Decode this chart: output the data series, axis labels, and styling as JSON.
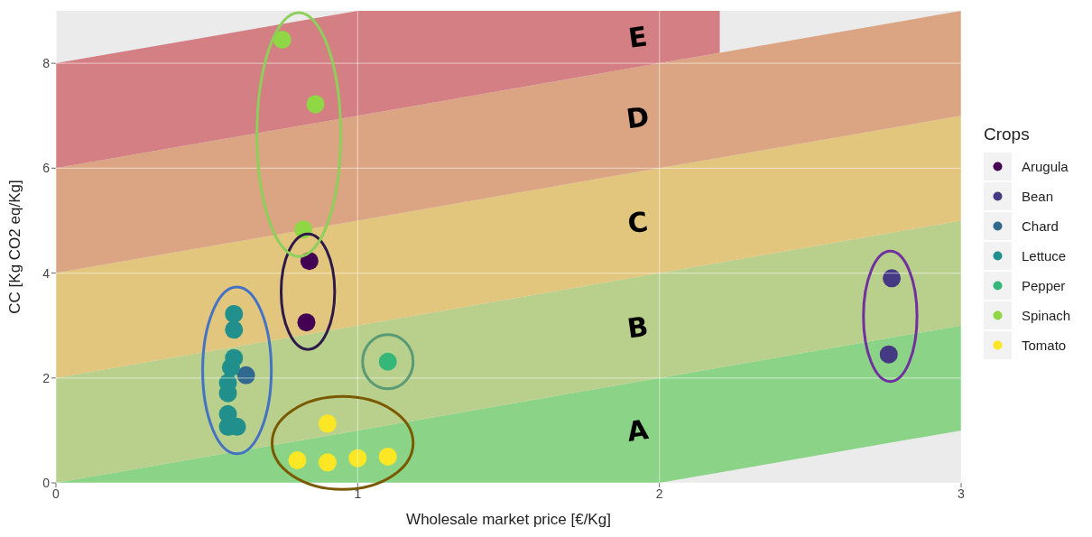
{
  "chart_data": {
    "type": "scatter",
    "xlabel": "Wholesale market price [€/Kg]",
    "ylabel": "CC [Kg CO2 eq/Kg]",
    "legend_title": "Crops",
    "xlim": [
      0,
      3
    ],
    "xticks": [
      0,
      1,
      2,
      3
    ],
    "ylim": [
      0,
      9
    ],
    "yticks": [
      0,
      2,
      4,
      6,
      8
    ],
    "grid": true,
    "legend": "right",
    "marker": "circle",
    "stacked": true,
    "x": [
      0,
      1,
      2,
      2.2,
      2.2,
      3
    ],
    "series": [
      {
        "type": "area",
        "marker": "none",
        "color": "#ebebeb",
        "values": [
          0,
          0,
          0,
          0.2,
          0.2,
          1
        ]
      },
      {
        "type": "area",
        "name": "A",
        "marker": "none",
        "color": "#8ad387",
        "values": [
          0,
          1,
          2,
          2,
          2,
          2
        ]
      },
      {
        "type": "area",
        "name": "B",
        "marker": "none",
        "color": "#b9cf8c",
        "values": [
          2,
          2,
          2,
          2,
          2,
          2
        ]
      },
      {
        "type": "area",
        "name": "C",
        "marker": "none",
        "color": "#e2c67d",
        "values": [
          2,
          2,
          2,
          2,
          2,
          2
        ]
      },
      {
        "type": "area",
        "name": "D",
        "marker": "none",
        "color": "#dba583",
        "values": [
          2,
          2,
          2,
          2,
          2,
          2
        ]
      },
      {
        "type": "area",
        "name": "E",
        "marker": "none",
        "color": "#d47f83",
        "values": [
          2,
          2,
          1,
          0.8,
          0,
          0
        ]
      },
      {
        "name": "Arugula",
        "color": "#440154",
        "x": [
          0.84,
          0.83
        ],
        "values": [
          4.23,
          3.06
        ]
      },
      {
        "name": "Bean",
        "color": "#443983",
        "x": [
          2.77,
          2.76
        ],
        "values": [
          3.9,
          2.45
        ]
      },
      {
        "name": "Chard",
        "color": "#31688e",
        "x": [
          0.63
        ],
        "values": [
          2.05
        ]
      },
      {
        "name": "Lettuce",
        "color": "#21908c",
        "x": [
          0.59,
          0.59,
          0.59,
          0.58,
          0.57,
          0.57,
          0.57,
          0.57,
          0.6
        ],
        "values": [
          3.22,
          2.92,
          2.38,
          2.2,
          1.91,
          1.71,
          1.31,
          1.07,
          1.07
        ]
      },
      {
        "name": "Pepper",
        "color": "#35b779",
        "x": [
          1.1
        ],
        "values": [
          2.31
        ]
      },
      {
        "name": "Spinach",
        "color": "#8fd744",
        "x": [
          0.75,
          0.86,
          0.82
        ],
        "values": [
          8.45,
          7.22,
          4.83
        ]
      },
      {
        "name": "Tomato",
        "color": "#fde725",
        "x": [
          0.9,
          0.8,
          0.9,
          1.0,
          1.1
        ],
        "values": [
          1.13,
          0.43,
          0.39,
          0.47,
          0.5
        ]
      }
    ]
  }
}
